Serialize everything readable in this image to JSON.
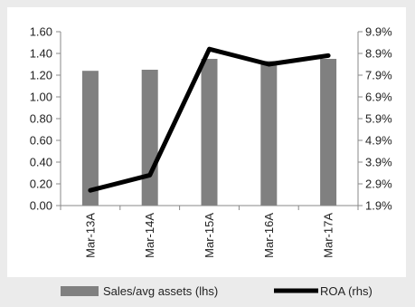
{
  "chart_data": {
    "type": "bar",
    "categories": [
      "Mar-13A",
      "Mar-14A",
      "Mar-15A",
      "Mar-16A",
      "Mar-17A"
    ],
    "series": [
      {
        "name": "Sales/avg assets (lhs)",
        "type": "bar",
        "axis": "left",
        "values": [
          1.24,
          1.25,
          1.35,
          1.33,
          1.35
        ],
        "color": "#808080"
      },
      {
        "name": "ROA (rhs)",
        "type": "line",
        "axis": "right",
        "values": [
          2.6,
          3.3,
          9.1,
          8.4,
          8.8
        ],
        "color": "#000000"
      }
    ],
    "left_axis": {
      "range": [
        0,
        1.6
      ],
      "ticks": [
        "0.00",
        "0.20",
        "0.40",
        "0.60",
        "0.80",
        "1.00",
        "1.20",
        "1.40",
        "1.60"
      ]
    },
    "right_axis": {
      "range": [
        1.9,
        9.9
      ],
      "ticks": [
        "1.9%",
        "2.9%",
        "3.9%",
        "4.9%",
        "5.9%",
        "6.9%",
        "7.9%",
        "8.9%",
        "9.9%"
      ]
    },
    "grid": false,
    "legend_position": "bottom",
    "title": "",
    "xlabel": "",
    "ylabel": ""
  },
  "colors": {
    "background": "#ebebeb",
    "plot_area": "#ffffff"
  }
}
